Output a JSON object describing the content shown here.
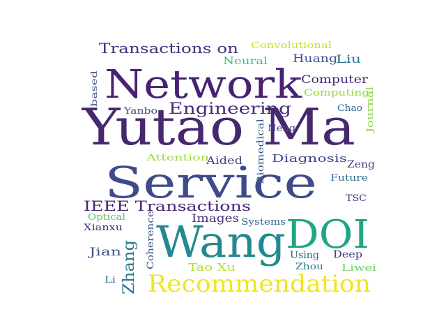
{
  "words": [
    {
      "text": "Yutao Ma",
      "color": "#46286f"
    },
    {
      "text": "Service",
      "color": "#3e4a89"
    },
    {
      "text": "Network",
      "color": "#482173"
    },
    {
      "text": "Wang",
      "color": "#23898e"
    },
    {
      "text": "DOI",
      "color": "#21a685"
    },
    {
      "text": "Recommendation",
      "color": "#f1e51d"
    },
    {
      "text": "Engineering",
      "color": "#472c7a"
    },
    {
      "text": "IEEE Transactions",
      "color": "#482576"
    },
    {
      "text": "Transactions on",
      "color": "#46307e"
    },
    {
      "text": "Zhang",
      "color": "#2a788e"
    },
    {
      "text": "Computer",
      "color": "#482878"
    },
    {
      "text": "Diagnosis",
      "color": "#3f4788"
    },
    {
      "text": "Huang",
      "color": "#3b528b"
    },
    {
      "text": "Liu",
      "color": "#2c728e"
    },
    {
      "text": "Neural",
      "color": "#3dbc74"
    },
    {
      "text": "Convolutional",
      "color": "#c8e020"
    },
    {
      "text": "Computing",
      "color": "#95d840"
    },
    {
      "text": "Chao",
      "color": "#33638d"
    },
    {
      "text": "Journal",
      "color": "#8dd645"
    },
    {
      "text": "Yanbo",
      "color": "#404688"
    },
    {
      "text": "based",
      "color": "#3b528b"
    },
    {
      "text": "Neng",
      "color": "#404688"
    },
    {
      "text": "Biomedical",
      "color": "#355f8d"
    },
    {
      "text": "Attention",
      "color": "#9bd93c"
    },
    {
      "text": "Aided",
      "color": "#414487"
    },
    {
      "text": "Zeng",
      "color": "#433e85"
    },
    {
      "text": "Future",
      "color": "#2e6e8e"
    },
    {
      "text": "TSC",
      "color": "#46337f"
    },
    {
      "text": "Images",
      "color": "#472f7d"
    },
    {
      "text": "Systems",
      "color": "#32658e"
    },
    {
      "text": "Optical",
      "color": "#5ec962"
    },
    {
      "text": "Xianxu",
      "color": "#482374"
    },
    {
      "text": "Coherence",
      "color": "#3a548c"
    },
    {
      "text": "Jian",
      "color": "#3b528b"
    },
    {
      "text": "Using",
      "color": "#355f8d"
    },
    {
      "text": "Deep",
      "color": "#453781"
    },
    {
      "text": "Tao Xu",
      "color": "#b5de2b"
    },
    {
      "text": "Zhou",
      "color": "#287d8e"
    },
    {
      "text": "Liwei",
      "color": "#6ccd5a"
    },
    {
      "text": "Li",
      "color": "#2c728e"
    }
  ]
}
